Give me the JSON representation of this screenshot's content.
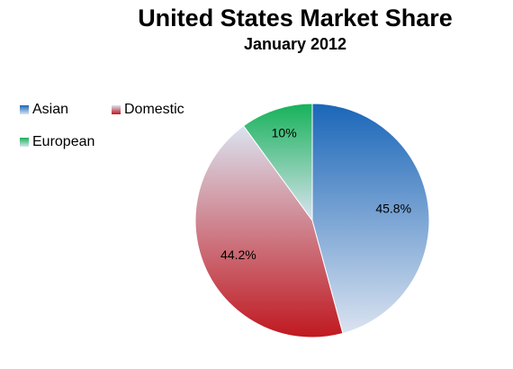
{
  "chart_data": {
    "type": "pie",
    "title": "United States Market Share",
    "subtitle": "January 2012",
    "categories": [
      "Asian",
      "Domestic",
      "European"
    ],
    "values": [
      45.8,
      44.2,
      10
    ],
    "value_labels": [
      "45.8%",
      "44.2%",
      "10%"
    ],
    "colors": [
      "#1a66b8",
      "#c0181f",
      "#16b25a"
    ],
    "legend": "top-left"
  }
}
